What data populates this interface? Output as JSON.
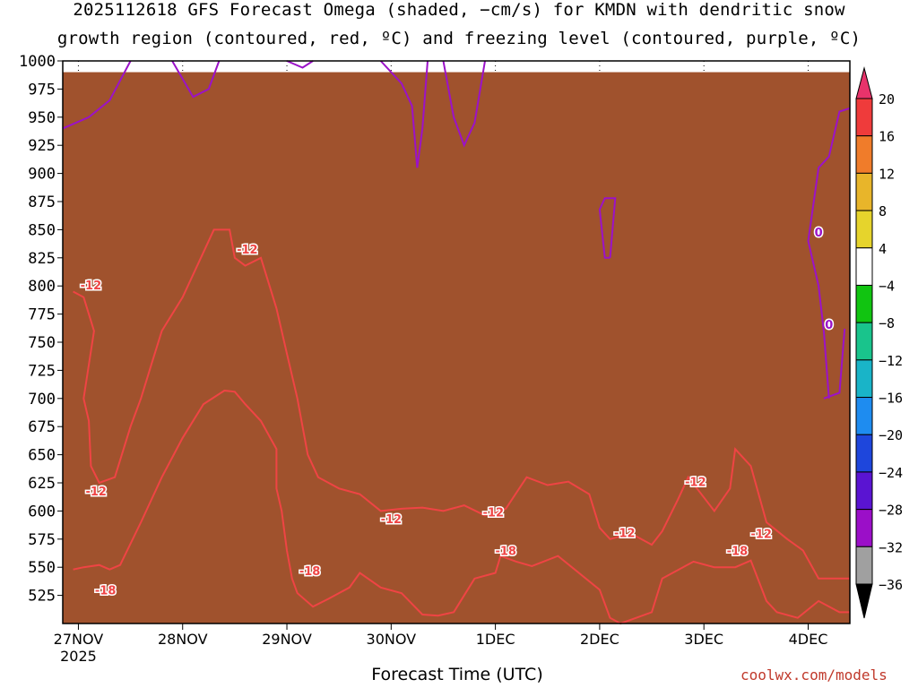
{
  "title_line1": "2025112618 GFS Forecast Omega (shaded, −cm/s) for KMDN with dendritic snow",
  "title_line2": "growth region (contoured, red, ºC) and freezing level (contoured, purple, ºC)",
  "credit": "coolwx.com/models",
  "chart_data": {
    "type": "heatmap",
    "title": "2025112618 GFS Forecast Omega (shaded, −cm/s) for KMDN with dendritic snow growth region (contoured, red, ºC) and freezing level (contoured, purple, ºC)",
    "xlabel": "Forecast Time (UTC)",
    "ylabel": "",
    "x_ticks": [
      "27NOV",
      "28NOV",
      "29NOV",
      "30NOV",
      "1DEC",
      "2DEC",
      "3DEC",
      "4DEC"
    ],
    "x_year_label": "2025",
    "x_range_days": [
      -0.15,
      7.4
    ],
    "y_ticks": [
      525,
      550,
      575,
      600,
      625,
      650,
      675,
      700,
      725,
      750,
      775,
      800,
      825,
      850,
      875,
      900,
      925,
      950,
      975,
      1000
    ],
    "y_range_hpa": [
      1000,
      500
    ],
    "grid": "dotted",
    "colorbar": {
      "labels": [
        "20",
        "16",
        "12",
        "8",
        "4",
        "−4",
        "−8",
        "−12",
        "−16",
        "−20",
        "−24",
        "−28",
        "−32",
        "−36"
      ],
      "colors": [
        "#e8336b",
        "#ef3b3b",
        "#f07c2a",
        "#e8b52a",
        "#e6d42c",
        "#ffffff",
        "#11c411",
        "#19c48c",
        "#19b4c8",
        "#1e8cf0",
        "#1e46dc",
        "#5a14d2",
        "#9b0fc8",
        "#a0a0a0",
        "#000000"
      ]
    },
    "dgz_labels": [
      {
        "label": "-18",
        "x": 0.26,
        "p": 530
      },
      {
        "label": "-12",
        "x": 0.17,
        "p": 618
      },
      {
        "label": "-12",
        "x": 0.12,
        "p": 801
      },
      {
        "label": "-18",
        "x": 2.22,
        "p": 547
      },
      {
        "label": "-12",
        "x": 1.62,
        "p": 833
      },
      {
        "label": "-12",
        "x": 3.0,
        "p": 593
      },
      {
        "label": "-18",
        "x": 4.1,
        "p": 565
      },
      {
        "label": "-12",
        "x": 3.98,
        "p": 599
      },
      {
        "label": "-12",
        "x": 5.24,
        "p": 581
      },
      {
        "label": "-12",
        "x": 5.92,
        "p": 626
      },
      {
        "label": "-18",
        "x": 6.32,
        "p": 565
      },
      {
        "label": "-12",
        "x": 6.55,
        "p": 580
      }
    ],
    "freezing_labels": [
      {
        "label": "0",
        "x": 7.2,
        "p": 766
      },
      {
        "label": "0",
        "x": 7.1,
        "p": 848
      }
    ],
    "dgz_upper_contour": [
      [
        -0.05,
        548
      ],
      [
        0.05,
        550
      ],
      [
        0.2,
        552
      ],
      [
        0.3,
        548
      ],
      [
        0.4,
        552
      ],
      [
        0.6,
        590
      ],
      [
        0.8,
        630
      ],
      [
        1.0,
        665
      ],
      [
        1.2,
        695
      ],
      [
        1.4,
        707
      ],
      [
        1.5,
        706
      ],
      [
        1.6,
        695
      ],
      [
        1.75,
        680
      ],
      [
        1.9,
        655
      ],
      [
        1.9,
        620
      ],
      [
        1.95,
        600
      ],
      [
        2.0,
        565
      ],
      [
        2.05,
        540
      ],
      [
        2.1,
        527
      ],
      [
        2.25,
        515
      ],
      [
        2.4,
        522
      ],
      [
        2.6,
        532
      ],
      [
        2.7,
        545
      ],
      [
        2.9,
        532
      ],
      [
        3.1,
        527
      ],
      [
        3.3,
        508
      ],
      [
        3.45,
        507
      ],
      [
        3.6,
        510
      ],
      [
        3.8,
        540
      ],
      [
        4.0,
        545
      ],
      [
        4.05,
        560
      ],
      [
        4.2,
        555
      ],
      [
        4.35,
        551
      ],
      [
        4.6,
        560
      ],
      [
        5.0,
        530
      ],
      [
        5.1,
        505
      ],
      [
        5.2,
        500
      ],
      [
        5.5,
        510
      ],
      [
        5.6,
        540
      ],
      [
        5.7,
        545
      ],
      [
        5.9,
        555
      ],
      [
        6.1,
        550
      ],
      [
        6.3,
        550
      ],
      [
        6.45,
        556
      ],
      [
        6.6,
        520
      ],
      [
        6.7,
        510
      ],
      [
        6.9,
        505
      ],
      [
        7.1,
        520
      ],
      [
        7.3,
        510
      ],
      [
        7.4,
        510
      ]
    ],
    "dgz_lower_contour": [
      [
        -0.05,
        795
      ],
      [
        0.05,
        790
      ],
      [
        0.15,
        760
      ],
      [
        0.1,
        730
      ],
      [
        0.05,
        700
      ],
      [
        0.1,
        680
      ],
      [
        0.12,
        640
      ],
      [
        0.2,
        625
      ],
      [
        0.35,
        630
      ],
      [
        0.5,
        675
      ],
      [
        0.6,
        700
      ],
      [
        0.7,
        730
      ],
      [
        0.8,
        760
      ],
      [
        1.0,
        790
      ],
      [
        1.3,
        850
      ],
      [
        1.45,
        850
      ],
      [
        1.5,
        825
      ],
      [
        1.6,
        818
      ],
      [
        1.75,
        825
      ],
      [
        1.8,
        810
      ],
      [
        1.9,
        780
      ],
      [
        2.0,
        740
      ],
      [
        2.1,
        700
      ],
      [
        2.2,
        650
      ],
      [
        2.3,
        630
      ],
      [
        2.5,
        620
      ],
      [
        2.7,
        615
      ],
      [
        2.9,
        600
      ],
      [
        3.1,
        602
      ],
      [
        3.3,
        603
      ],
      [
        3.5,
        600
      ],
      [
        3.7,
        605
      ],
      [
        3.9,
        596
      ],
      [
        4.1,
        602
      ],
      [
        4.3,
        630
      ],
      [
        4.5,
        623
      ],
      [
        4.7,
        626
      ],
      [
        4.9,
        615
      ],
      [
        5.0,
        585
      ],
      [
        5.1,
        575
      ],
      [
        5.3,
        580
      ],
      [
        5.5,
        570
      ],
      [
        5.6,
        582
      ],
      [
        5.75,
        610
      ],
      [
        5.85,
        630
      ],
      [
        6.0,
        612
      ],
      [
        6.1,
        600
      ],
      [
        6.25,
        620
      ],
      [
        6.3,
        655
      ],
      [
        6.45,
        640
      ],
      [
        6.6,
        590
      ],
      [
        6.8,
        575
      ],
      [
        6.95,
        565
      ],
      [
        7.1,
        540
      ],
      [
        7.3,
        540
      ],
      [
        7.4,
        540
      ]
    ],
    "freezing_contours": [
      [
        [
          -0.15,
          940
        ],
        [
          0.1,
          950
        ],
        [
          0.3,
          965
        ],
        [
          0.5,
          1000
        ]
      ],
      [
        [
          0.9,
          1000
        ],
        [
          1.1,
          968
        ],
        [
          1.25,
          975
        ],
        [
          1.35,
          1000
        ]
      ],
      [
        [
          2.0,
          1000
        ],
        [
          2.15,
          994
        ],
        [
          2.25,
          1000
        ]
      ],
      [
        [
          2.9,
          1000
        ],
        [
          3.1,
          980
        ],
        [
          3.2,
          960
        ],
        [
          3.25,
          905
        ],
        [
          3.3,
          940
        ],
        [
          3.35,
          1000
        ]
      ],
      [
        [
          3.5,
          1000
        ],
        [
          3.6,
          950
        ],
        [
          3.7,
          925
        ],
        [
          3.8,
          945
        ],
        [
          3.9,
          1000
        ]
      ],
      [
        [
          5.1,
          825
        ],
        [
          5.05,
          825
        ],
        [
          5.0,
          868
        ],
        [
          5.05,
          878
        ],
        [
          5.15,
          878
        ],
        [
          5.1,
          825
        ]
      ],
      [
        [
          7.2,
          700
        ],
        [
          7.15,
          760
        ],
        [
          7.1,
          800
        ],
        [
          7.0,
          840
        ],
        [
          7.1,
          905
        ],
        [
          7.2,
          915
        ],
        [
          7.3,
          955
        ],
        [
          7.4,
          958
        ]
      ],
      [
        [
          7.15,
          700
        ],
        [
          7.3,
          705
        ],
        [
          7.35,
          762
        ]
      ]
    ],
    "terrain_top_hpa": 990
  }
}
